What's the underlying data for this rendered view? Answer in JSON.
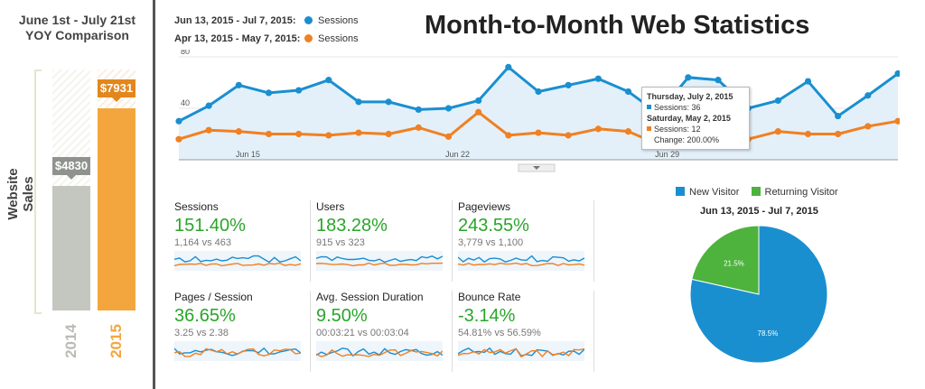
{
  "yoy": {
    "title_line1": "June 1st - July 21st",
    "title_line2": "YOY Comparison",
    "axis_label": "Website Sales",
    "bars": [
      {
        "year": "2014",
        "value_label": "$4830",
        "value": 4830,
        "color": "#c3c7c0"
      },
      {
        "year": "2015",
        "value_label": "$7931",
        "value": 7931,
        "color": "#f4a63e"
      }
    ]
  },
  "header": {
    "title": "Month-to-Month Web Statistics",
    "legend": [
      {
        "range": "Jun 13, 2015 - Jul 7, 2015:",
        "metric": "Sessions",
        "color": "#1a8fd0"
      },
      {
        "range": "Apr 13, 2015 - May 7, 2015:",
        "metric": "Sessions",
        "color": "#f08022"
      }
    ]
  },
  "chart_data": {
    "type": "line",
    "title": "",
    "ylim": [
      0,
      80
    ],
    "yticks": [
      "80",
      "40"
    ],
    "xtick_labels": [
      "Jun 15",
      "Jun 22",
      "Jun 29"
    ],
    "xtick_index": [
      2,
      9,
      16
    ],
    "series": [
      {
        "name": "Sessions",
        "color": "#1a8fd0",
        "values": [
          30,
          42,
          58,
          52,
          54,
          62,
          45,
          45,
          39,
          40,
          46,
          72,
          53,
          58,
          63,
          53,
          36,
          64,
          62,
          40,
          46,
          61,
          34,
          50,
          67
        ]
      },
      {
        "name": "Sessions",
        "color": "#f08022",
        "values": [
          16,
          23,
          22,
          20,
          20,
          19,
          21,
          20,
          25,
          18,
          37,
          19,
          21,
          19,
          24,
          22,
          12,
          16,
          17,
          16,
          22,
          20,
          20,
          26,
          30
        ]
      }
    ]
  },
  "tooltip": {
    "date1": "Thursday, July 2, 2015",
    "line1": "Sessions: 36",
    "date2": "Saturday, May 2, 2015",
    "line2": "Sessions: 12",
    "change": "Change: 200.00%"
  },
  "tiles": [
    {
      "label": "Sessions",
      "value": "151.40%",
      "sub": "1,164 vs 463"
    },
    {
      "label": "Users",
      "value": "183.28%",
      "sub": "915 vs 323"
    },
    {
      "label": "Pageviews",
      "value": "243.55%",
      "sub": "3,779 vs 1,100"
    },
    {
      "label": "Pages / Session",
      "value": "36.65%",
      "sub": "3.25 vs 2.38"
    },
    {
      "label": "Avg. Session Duration",
      "value": "9.50%",
      "sub": "00:03:21 vs 00:03:04"
    },
    {
      "label": "Bounce Rate",
      "value": "-3.14%",
      "sub": "54.81% vs 56.59%"
    }
  ],
  "pie": {
    "title": "Jun 13, 2015 - Jul 7, 2015",
    "legend": [
      {
        "label": "New Visitor",
        "color": "#1a8fd0"
      },
      {
        "label": "Returning Visitor",
        "color": "#4db33d"
      }
    ],
    "slices": [
      {
        "label": "78.5%",
        "value": 78.5,
        "color": "#1a8fd0"
      },
      {
        "label": "21.5%",
        "value": 21.5,
        "color": "#4db33d"
      }
    ]
  }
}
